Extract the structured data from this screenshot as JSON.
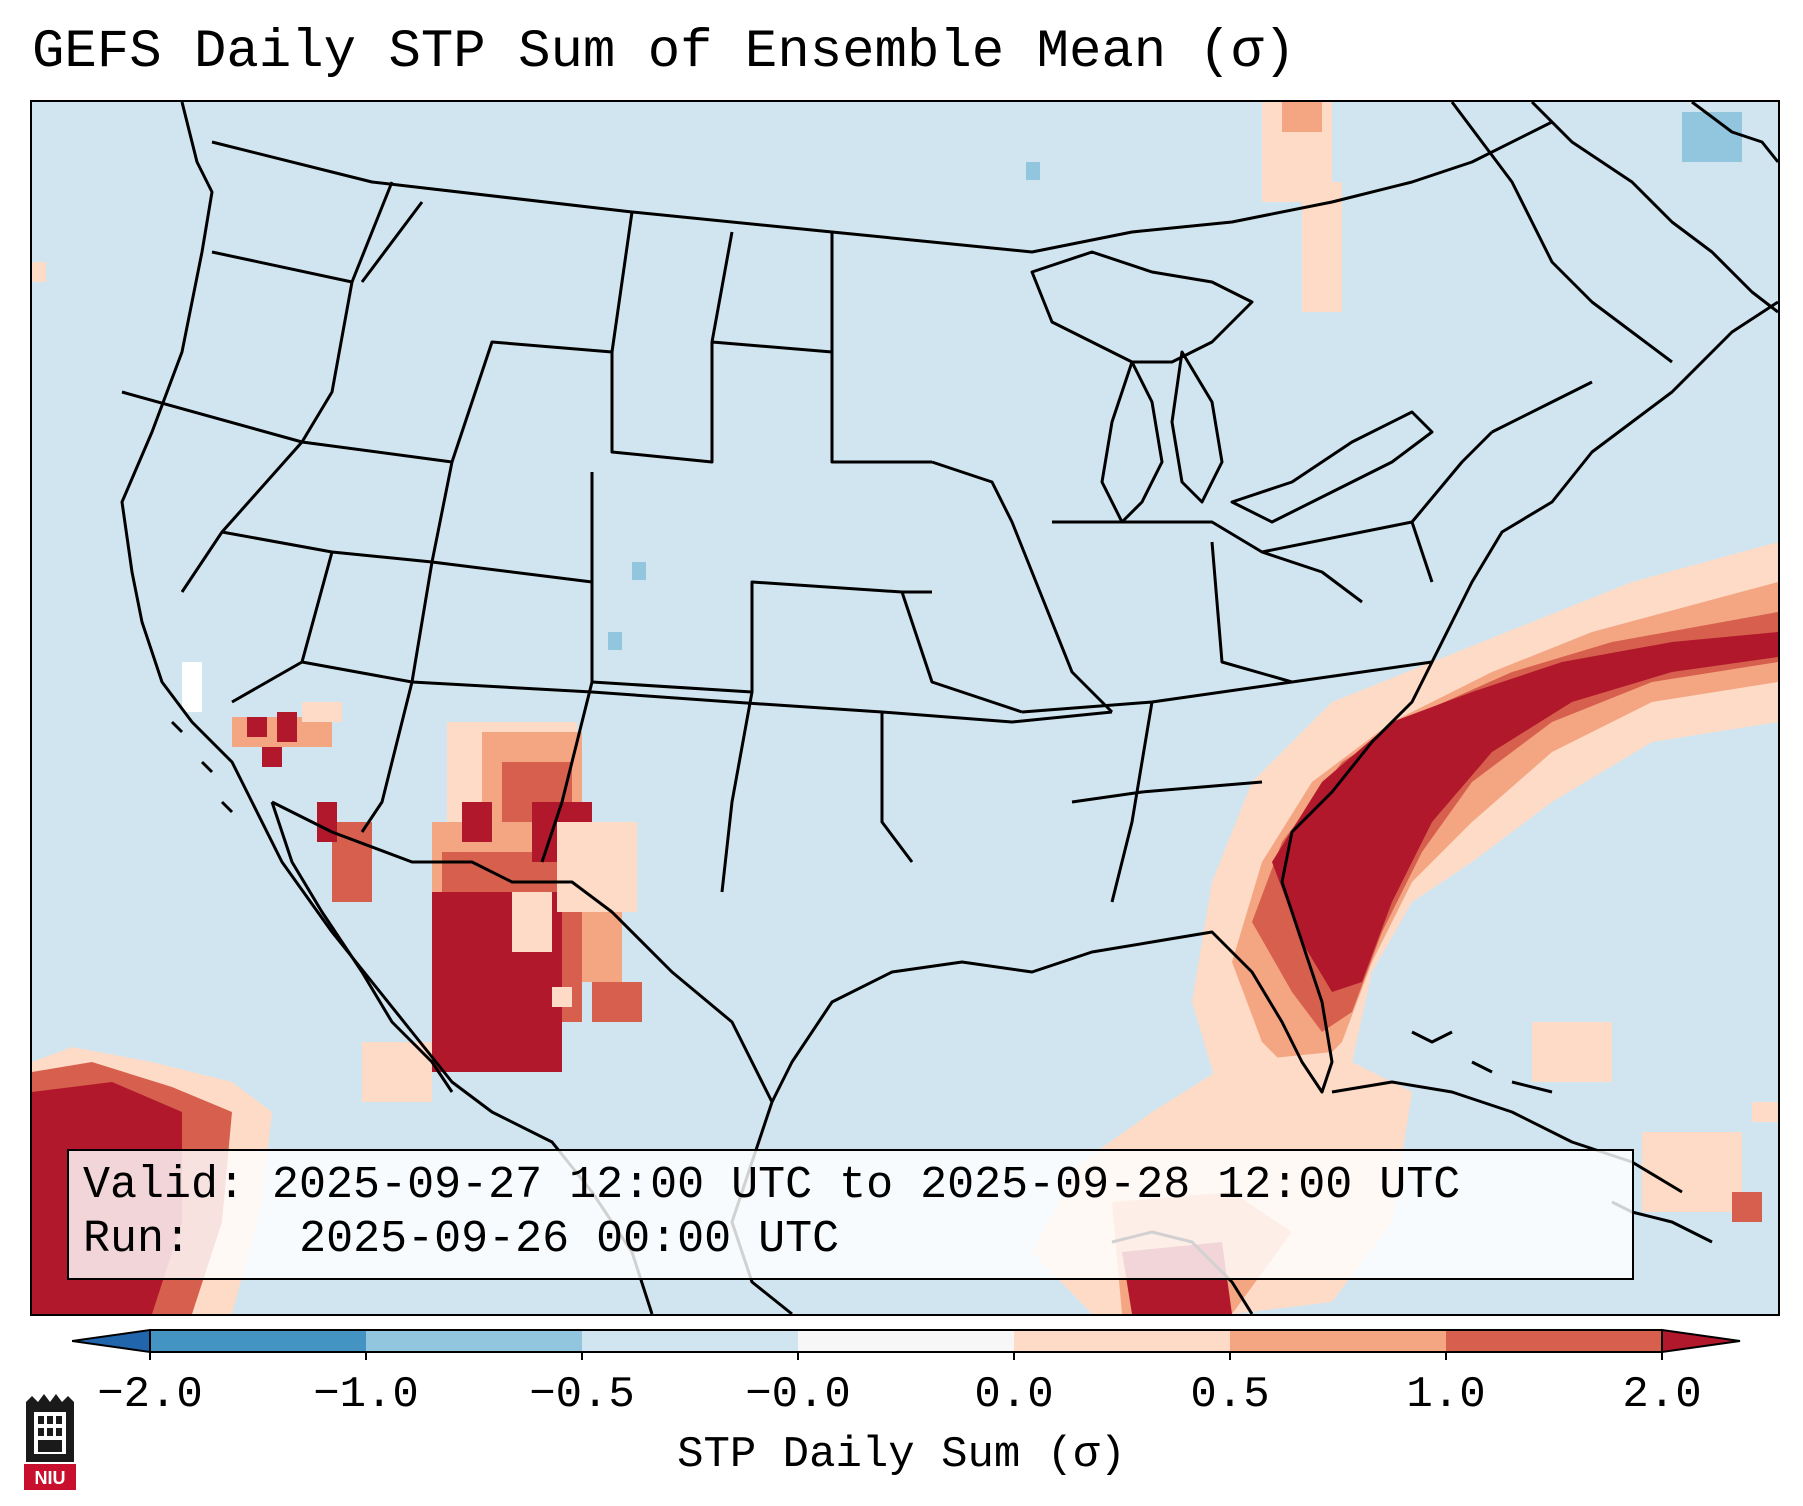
{
  "title": "GEFS Daily STP Sum of Ensemble Mean (σ)",
  "info": {
    "valid_label": "Valid:",
    "valid_value": "2025-09-27 12:00 UTC to 2025-09-28 12:00 UTC",
    "run_label": "Run:",
    "run_value": "2025-09-26 00:00 UTC"
  },
  "colorbar": {
    "label": "STP Daily Sum (σ)",
    "ticks": [
      "−2.0",
      "−1.0",
      "−0.5",
      "−0.0",
      "0.0",
      "0.5",
      "1.0",
      "2.0"
    ],
    "bins": [
      {
        "name": "below -2.0",
        "color": "#2166ac"
      },
      {
        "name": "-2.0 to -1.0",
        "color": "#4393c3"
      },
      {
        "name": "-1.0 to -0.5",
        "color": "#92c5de"
      },
      {
        "name": "-0.5 to -0.0",
        "color": "#d1e5f0"
      },
      {
        "name": "-0.0 to 0.0",
        "color": "#f7f7f7"
      },
      {
        "name": "0.0 to 0.5",
        "color": "#fddbc7"
      },
      {
        "name": "0.5 to 1.0",
        "color": "#f4a582"
      },
      {
        "name": "1.0 to 2.0",
        "color": "#d6604d"
      },
      {
        "name": "above 2.0",
        "color": "#b2182b"
      }
    ]
  },
  "map": {
    "background_color": "#d1e5f0",
    "outline_color": "#000000",
    "regions": [
      "Southwest (Arizona / New Mexico / Sonora)",
      "Southern California",
      "Southeast U.S. coast and Atlantic",
      "Eastern Pacific",
      "Gulf of Mexico / Caribbean"
    ]
  },
  "logo": {
    "text": "NIU"
  }
}
